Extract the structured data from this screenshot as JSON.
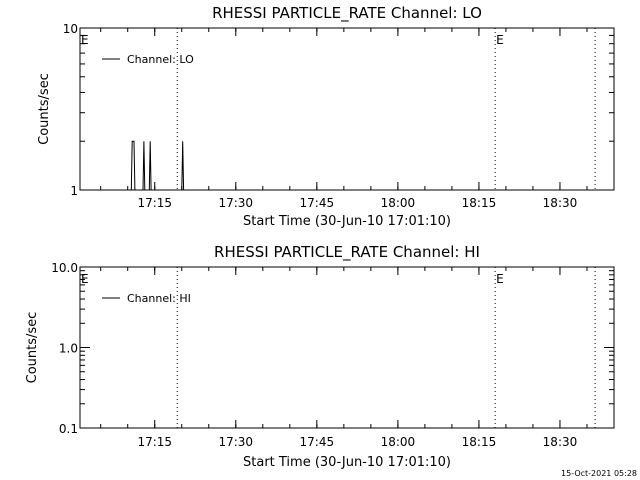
{
  "footer": {
    "timestamp": "15-Oct-2021 05:28"
  },
  "chart_data": [
    {
      "type": "line",
      "title": "RHESSI PARTICLE_RATE Channel: LO",
      "xlabel": "Start Time (30-Jun-10 17:01:10)",
      "ylabel": "Counts/sec",
      "yscale": "log",
      "ylim": [
        1,
        10
      ],
      "ytick_labels": [
        "1",
        "10"
      ],
      "ytick_values": [
        1,
        10
      ],
      "xlim": [
        "17:01:10",
        "18:40:00"
      ],
      "xtick_labels": [
        "17:15",
        "17:30",
        "17:45",
        "18:00",
        "18:15",
        "18:30"
      ],
      "xtick_values": [
        "17:15:00",
        "17:30:00",
        "17:45:00",
        "18:00:00",
        "18:15:00",
        "18:30:00"
      ],
      "grid": false,
      "legend": "top-left",
      "series": [
        {
          "name": "Channel: LO",
          "points": [
            [
              "17:10:40",
              1
            ],
            [
              "17:10:50",
              2
            ],
            [
              "17:11:10",
              2
            ],
            [
              "17:11:20",
              1
            ],
            [
              "17:12:50",
              1
            ],
            [
              "17:13:00",
              2
            ],
            [
              "17:13:10",
              1
            ],
            [
              "17:14:00",
              1
            ],
            [
              "17:14:10",
              2
            ],
            [
              "17:14:20",
              1
            ],
            [
              "17:20:00",
              1
            ],
            [
              "17:20:10",
              2
            ],
            [
              "17:20:20",
              1
            ]
          ]
        }
      ],
      "event_markers": [
        {
          "time": "17:01:10",
          "label": "E"
        },
        {
          "time": "18:18:00",
          "label": "E"
        }
      ],
      "dotted_lines": [
        "17:19:10",
        "18:18:00",
        "18:36:30"
      ]
    },
    {
      "type": "line",
      "title": "RHESSI PARTICLE_RATE Channel: HI",
      "xlabel": "Start Time (30-Jun-10 17:01:10)",
      "ylabel": "Counts/sec",
      "yscale": "log",
      "ylim": [
        0.1,
        10
      ],
      "ytick_labels": [
        "0.1",
        "1.0",
        "10.0"
      ],
      "ytick_values": [
        0.1,
        1,
        10
      ],
      "xlim": [
        "17:01:10",
        "18:40:00"
      ],
      "xtick_labels": [
        "17:15",
        "17:30",
        "17:45",
        "18:00",
        "18:15",
        "18:30"
      ],
      "xtick_values": [
        "17:15:00",
        "17:30:00",
        "17:45:00",
        "18:00:00",
        "18:15:00",
        "18:30:00"
      ],
      "grid": false,
      "legend": "top-left",
      "series": [
        {
          "name": "Channel: HI",
          "points": []
        }
      ],
      "event_markers": [
        {
          "time": "17:01:10",
          "label": "E"
        },
        {
          "time": "18:18:00",
          "label": "E"
        }
      ],
      "dotted_lines": [
        "17:19:10",
        "18:18:00",
        "18:36:30"
      ]
    }
  ]
}
